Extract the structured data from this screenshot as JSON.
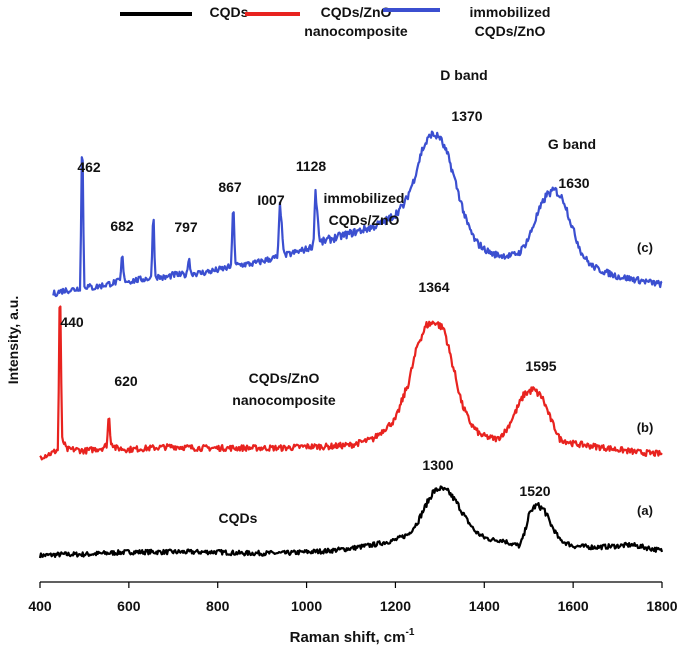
{
  "chart_data": {
    "type": "line",
    "xlabel": "Raman shift, cm",
    "xlabel_sup": "-1",
    "ylabel": "Intensity, a.u.",
    "xlim": [
      400,
      1800
    ],
    "x_ticks": [
      400,
      600,
      800,
      1000,
      1200,
      1400,
      1600,
      1800
    ],
    "grid": false,
    "legend_position": "top",
    "legend": [
      {
        "lines": [
          "CQDs"
        ],
        "color": "#000000"
      },
      {
        "lines": [
          "CQDs/ZnO",
          "nanocomposite"
        ],
        "color": "#e8231f"
      },
      {
        "lines": [
          "immobilized",
          "CQDs/ZnO"
        ],
        "color": "#3b4fd0"
      }
    ],
    "series": [
      {
        "name": "CQDs",
        "tag": "(a)",
        "color": "#000000",
        "inline_label": [
          "CQDs"
        ],
        "x": [
          400,
          450,
          500,
          550,
          600,
          650,
          700,
          750,
          800,
          850,
          900,
          950,
          1000,
          1050,
          1100,
          1150,
          1200,
          1230,
          1250,
          1270,
          1285,
          1300,
          1320,
          1340,
          1360,
          1380,
          1400,
          1420,
          1440,
          1460,
          1480,
          1490,
          1500,
          1510,
          1520,
          1535,
          1550,
          1570,
          1600,
          1650,
          1700,
          1730,
          1760,
          1800
        ],
        "y": [
          0.02,
          0.03,
          0.03,
          0.04,
          0.05,
          0.05,
          0.05,
          0.05,
          0.05,
          0.04,
          0.04,
          0.04,
          0.05,
          0.06,
          0.08,
          0.11,
          0.15,
          0.2,
          0.3,
          0.45,
          0.55,
          0.58,
          0.55,
          0.45,
          0.32,
          0.22,
          0.17,
          0.15,
          0.15,
          0.12,
          0.1,
          0.2,
          0.35,
          0.42,
          0.44,
          0.4,
          0.28,
          0.15,
          0.1,
          0.09,
          0.1,
          0.11,
          0.09,
          0.06
        ],
        "peaks": [
          {
            "x": 1300,
            "label": "1300"
          },
          {
            "x": 1520,
            "label": "1520"
          }
        ]
      },
      {
        "name": "CQDs/ZnO nanocomposite",
        "tag": "(b)",
        "color": "#e8231f",
        "inline_label": [
          "CQDs/ZnO",
          "nanocomposite"
        ],
        "x": [
          400,
          420,
          430,
          440,
          445,
          450,
          460,
          480,
          500,
          520,
          540,
          550,
          555,
          560,
          570,
          600,
          650,
          700,
          750,
          800,
          850,
          900,
          950,
          1000,
          1050,
          1100,
          1150,
          1200,
          1230,
          1250,
          1270,
          1290,
          1310,
          1330,
          1350,
          1370,
          1390,
          1410,
          1430,
          1450,
          1470,
          1490,
          1510,
          1530,
          1550,
          1570,
          1600,
          1650,
          1700,
          1750,
          1800
        ],
        "y": [
          0.0,
          0.02,
          0.03,
          0.05,
          1.0,
          0.12,
          0.05,
          0.05,
          0.04,
          0.05,
          0.06,
          0.08,
          0.25,
          0.1,
          0.06,
          0.05,
          0.06,
          0.07,
          0.06,
          0.06,
          0.06,
          0.06,
          0.06,
          0.07,
          0.07,
          0.08,
          0.12,
          0.25,
          0.5,
          0.75,
          0.88,
          0.9,
          0.85,
          0.6,
          0.35,
          0.22,
          0.15,
          0.13,
          0.12,
          0.18,
          0.3,
          0.42,
          0.45,
          0.4,
          0.25,
          0.12,
          0.09,
          0.07,
          0.05,
          0.03,
          0.02
        ],
        "peaks": [
          {
            "x": 440,
            "label": "440"
          },
          {
            "x": 620,
            "label": "620"
          },
          {
            "x": 1364,
            "label": "1364"
          },
          {
            "x": 1595,
            "label": "1595"
          }
        ]
      },
      {
        "name": "immobilized CQDs/ZnO",
        "tag": "(c)",
        "color": "#3b4fd0",
        "inline_label": [
          "immobilized",
          "CQDs/ZnO"
        ],
        "x": [
          430,
          450,
          480,
          490,
          495,
          500,
          520,
          550,
          580,
          585,
          590,
          600,
          650,
          655,
          660,
          680,
          700,
          730,
          735,
          740,
          760,
          800,
          830,
          835,
          840,
          880,
          920,
          935,
          940,
          950,
          1000,
          1015,
          1020,
          1030,
          1050,
          1100,
          1150,
          1180,
          1200,
          1220,
          1240,
          1260,
          1280,
          1300,
          1320,
          1340,
          1360,
          1380,
          1400,
          1420,
          1440,
          1460,
          1480,
          1500,
          1520,
          1540,
          1560,
          1580,
          1600,
          1620,
          1640,
          1660,
          1680,
          1700,
          1720,
          1740,
          1760,
          1800
        ],
        "y": [
          0.0,
          0.02,
          0.03,
          0.04,
          0.85,
          0.05,
          0.04,
          0.06,
          0.08,
          0.22,
          0.09,
          0.08,
          0.1,
          0.45,
          0.11,
          0.1,
          0.12,
          0.12,
          0.22,
          0.13,
          0.13,
          0.15,
          0.17,
          0.52,
          0.18,
          0.19,
          0.22,
          0.23,
          0.55,
          0.24,
          0.28,
          0.3,
          0.65,
          0.32,
          0.34,
          0.38,
          0.42,
          0.46,
          0.5,
          0.56,
          0.7,
          0.9,
          1.0,
          0.98,
          0.85,
          0.65,
          0.45,
          0.33,
          0.28,
          0.25,
          0.24,
          0.24,
          0.26,
          0.35,
          0.5,
          0.62,
          0.65,
          0.58,
          0.4,
          0.25,
          0.18,
          0.15,
          0.13,
          0.11,
          0.1,
          0.09,
          0.08,
          0.06
        ],
        "peaks": [
          {
            "x": 462,
            "label": "462"
          },
          {
            "x": 682,
            "label": "682"
          },
          {
            "x": 797,
            "label": "797"
          },
          {
            "x": 867,
            "label": "867"
          },
          {
            "x": 1007,
            "label": "I007"
          },
          {
            "x": 1128,
            "label": "1128"
          },
          {
            "x": 1370,
            "label": "1370"
          },
          {
            "x": 1630,
            "label": "1630"
          }
        ]
      }
    ],
    "annotations": [
      "D band",
      "G band"
    ]
  }
}
